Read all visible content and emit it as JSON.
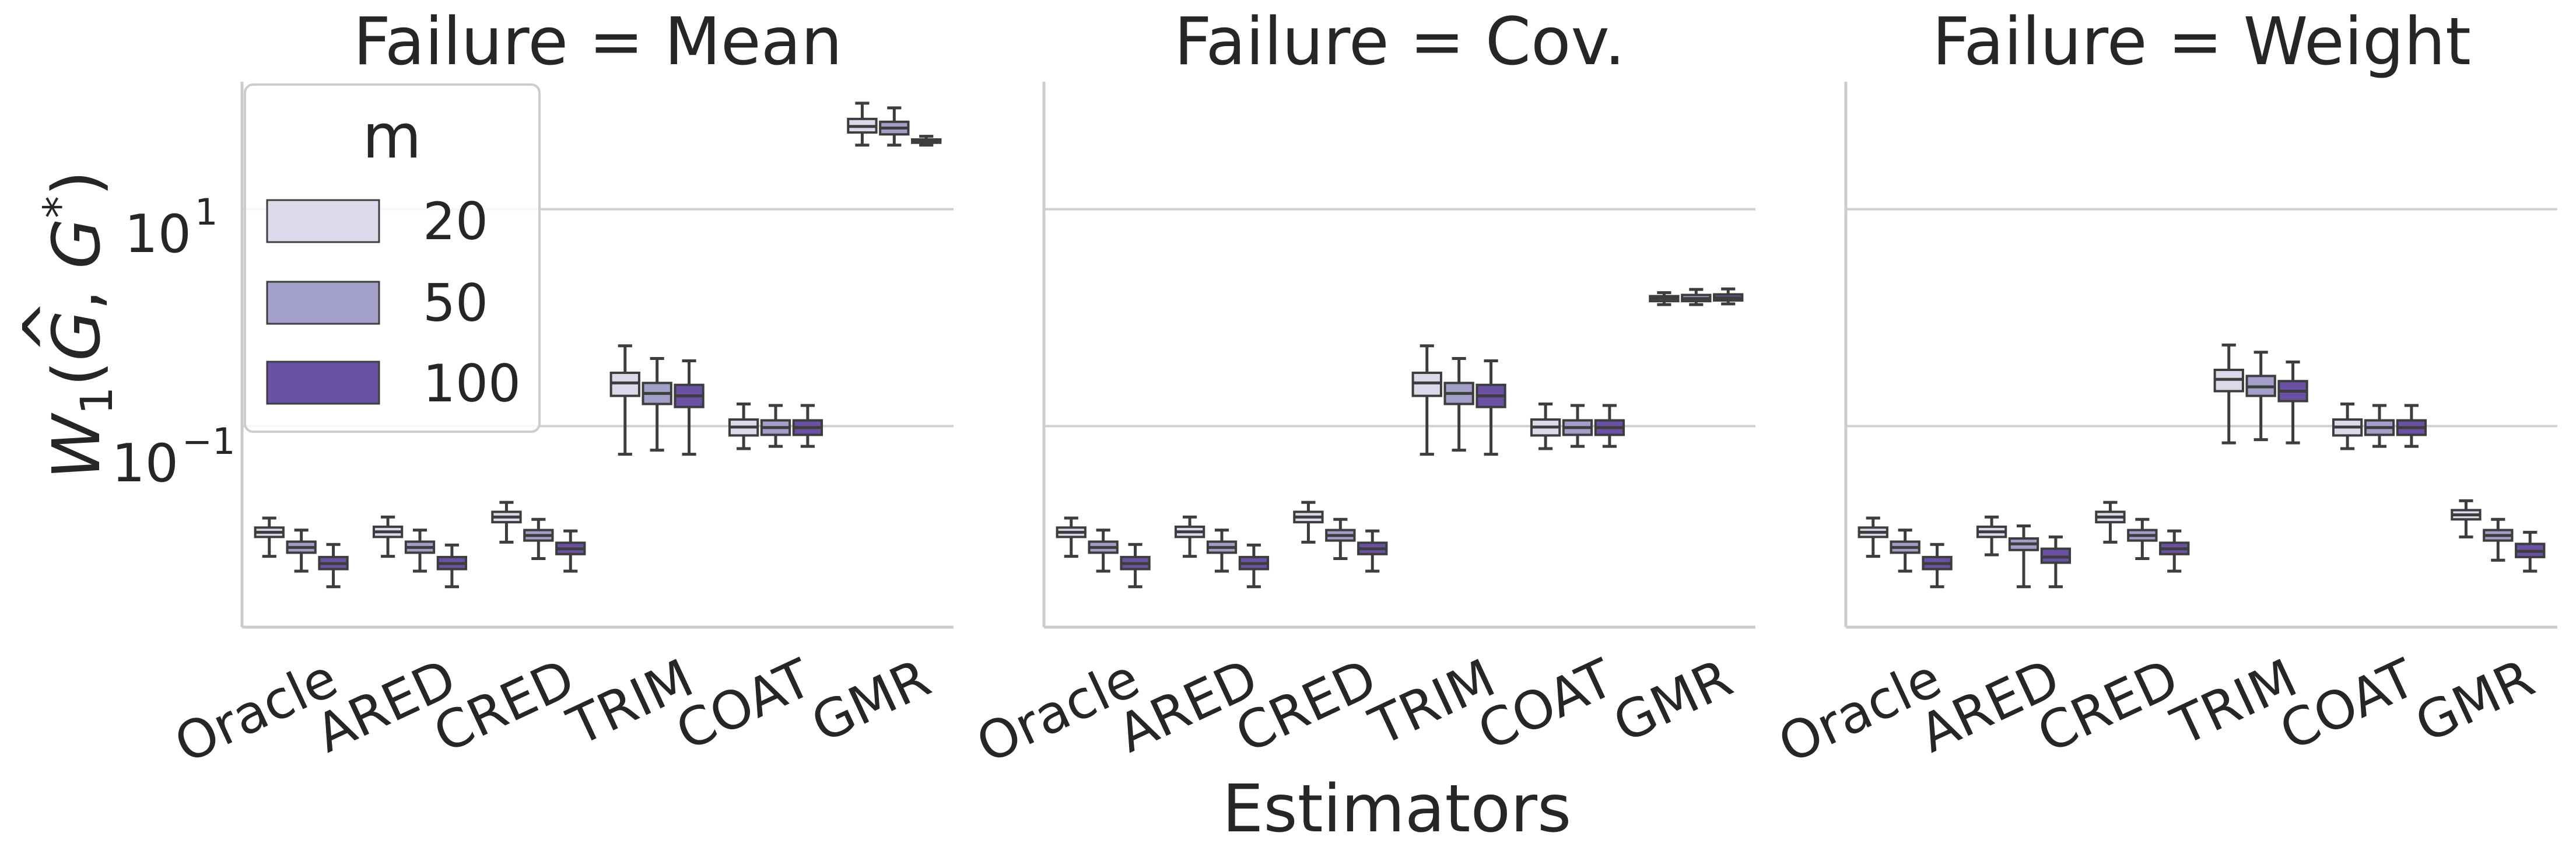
{
  "chart_data": {
    "type": "box",
    "ylabel": "W₁(Ĝ, G*)",
    "ylabel_parts": {
      "w": "W",
      "sub": "1",
      "g1": "G",
      "g1_hat": "^",
      "sep": ", ",
      "g2": "G",
      "star": "*"
    },
    "xlabel": "Estimators",
    "yscale": "log",
    "ylim": [
      0.0014,
      150
    ],
    "yticks": [
      {
        "value": 10,
        "base": "10",
        "exp": "1"
      },
      {
        "value": 0.1,
        "base": "10",
        "exp": "−1"
      }
    ],
    "categories": [
      "Oracle",
      "ARED",
      "CRED",
      "TRIM",
      "COAT",
      "GMR"
    ],
    "legend": {
      "title": "m",
      "position": "top-left",
      "entries": [
        {
          "label": "20",
          "color": "#dadaea"
        },
        {
          "label": "50",
          "color": "#a29fc8"
        },
        {
          "label": "100",
          "color": "#6a51a3"
        }
      ]
    },
    "edge_color": "#3d3d3d",
    "grid_color": "#d0d0d0",
    "panels": [
      {
        "title": "Failure = Mean",
        "boxes": [
          [
            [
              0.0063,
              0.0095,
              0.0105,
              0.0116,
              0.0142
            ],
            [
              0.0046,
              0.0068,
              0.0076,
              0.0086,
              0.011
            ],
            [
              0.0033,
              0.0048,
              0.0054,
              0.0062,
              0.0081
            ]
          ],
          [
            [
              0.0063,
              0.0095,
              0.0106,
              0.0118,
              0.0145
            ],
            [
              0.0046,
              0.0068,
              0.0076,
              0.0086,
              0.011
            ],
            [
              0.0033,
              0.0048,
              0.0054,
              0.0062,
              0.008
            ]
          ],
          [
            [
              0.0085,
              0.013,
              0.0145,
              0.0162,
              0.0198
            ],
            [
              0.006,
              0.0088,
              0.0098,
              0.011,
              0.0138
            ],
            [
              0.0046,
              0.0066,
              0.0074,
              0.0084,
              0.0108
            ]
          ],
          [
            [
              0.055,
              0.19,
              0.25,
              0.31,
              0.55
            ],
            [
              0.06,
              0.16,
              0.2,
              0.25,
              0.42
            ],
            [
              0.055,
              0.15,
              0.19,
              0.24,
              0.4
            ]
          ],
          [
            [
              0.062,
              0.082,
              0.098,
              0.115,
              0.16
            ],
            [
              0.065,
              0.083,
              0.097,
              0.113,
              0.155
            ],
            [
              0.065,
              0.083,
              0.097,
              0.113,
              0.155
            ]
          ],
          [
            [
              39,
              51,
              58,
              68,
              95
            ],
            [
              39,
              49,
              56,
              64,
              86
            ],
            [
              39,
              41,
              42,
              44,
              47
            ]
          ]
        ]
      },
      {
        "title": "Failure = Cov.",
        "boxes": [
          [
            [
              0.0063,
              0.0095,
              0.0105,
              0.0116,
              0.0142
            ],
            [
              0.0046,
              0.0068,
              0.0076,
              0.0086,
              0.011
            ],
            [
              0.0033,
              0.0048,
              0.0054,
              0.0062,
              0.0081
            ]
          ],
          [
            [
              0.0063,
              0.0095,
              0.0106,
              0.0118,
              0.0145
            ],
            [
              0.0046,
              0.0068,
              0.0076,
              0.0086,
              0.011
            ],
            [
              0.0033,
              0.0048,
              0.0054,
              0.0062,
              0.008
            ]
          ],
          [
            [
              0.0085,
              0.013,
              0.0145,
              0.0162,
              0.0198
            ],
            [
              0.006,
              0.0088,
              0.0098,
              0.011,
              0.0138
            ],
            [
              0.0046,
              0.0066,
              0.0074,
              0.0084,
              0.0108
            ]
          ],
          [
            [
              0.055,
              0.19,
              0.25,
              0.31,
              0.55
            ],
            [
              0.06,
              0.16,
              0.2,
              0.25,
              0.42
            ],
            [
              0.055,
              0.15,
              0.19,
              0.24,
              0.4
            ]
          ],
          [
            [
              0.062,
              0.082,
              0.098,
              0.115,
              0.16
            ],
            [
              0.065,
              0.083,
              0.097,
              0.113,
              0.155
            ],
            [
              0.065,
              0.083,
              0.097,
              0.113,
              0.155
            ]
          ],
          [
            [
              1.32,
              1.42,
              1.5,
              1.58,
              1.7
            ],
            [
              1.32,
              1.42,
              1.5,
              1.62,
              1.82
            ],
            [
              1.34,
              1.44,
              1.52,
              1.64,
              1.84
            ]
          ]
        ]
      },
      {
        "title": "Failure = Weight",
        "boxes": [
          [
            [
              0.0063,
              0.0095,
              0.0105,
              0.0116,
              0.0142
            ],
            [
              0.0046,
              0.0068,
              0.0076,
              0.0086,
              0.011
            ],
            [
              0.0033,
              0.0048,
              0.0054,
              0.0062,
              0.0081
            ]
          ],
          [
            [
              0.0065,
              0.0095,
              0.0106,
              0.0118,
              0.0145
            ],
            [
              0.0033,
              0.0072,
              0.0082,
              0.0092,
              0.012
            ],
            [
              0.0033,
              0.0055,
              0.0062,
              0.0074,
              0.0095
            ]
          ],
          [
            [
              0.0085,
              0.013,
              0.0145,
              0.0162,
              0.0198
            ],
            [
              0.006,
              0.0088,
              0.0098,
              0.011,
              0.0138
            ],
            [
              0.0046,
              0.0066,
              0.0074,
              0.0084,
              0.0108
            ]
          ],
          [
            [
              0.07,
              0.21,
              0.27,
              0.33,
              0.56
            ],
            [
              0.075,
              0.19,
              0.23,
              0.29,
              0.48
            ],
            [
              0.07,
              0.17,
              0.21,
              0.26,
              0.39
            ]
          ],
          [
            [
              0.062,
              0.082,
              0.098,
              0.115,
              0.16
            ],
            [
              0.065,
              0.083,
              0.097,
              0.113,
              0.155
            ],
            [
              0.065,
              0.083,
              0.097,
              0.113,
              0.155
            ]
          ],
          [
            [
              0.0095,
              0.0138,
              0.0152,
              0.0168,
              0.0205
            ],
            [
              0.0058,
              0.0088,
              0.0098,
              0.011,
              0.0138
            ],
            [
              0.0046,
              0.0062,
              0.007,
              0.0082,
              0.0105
            ]
          ]
        ]
      }
    ]
  }
}
